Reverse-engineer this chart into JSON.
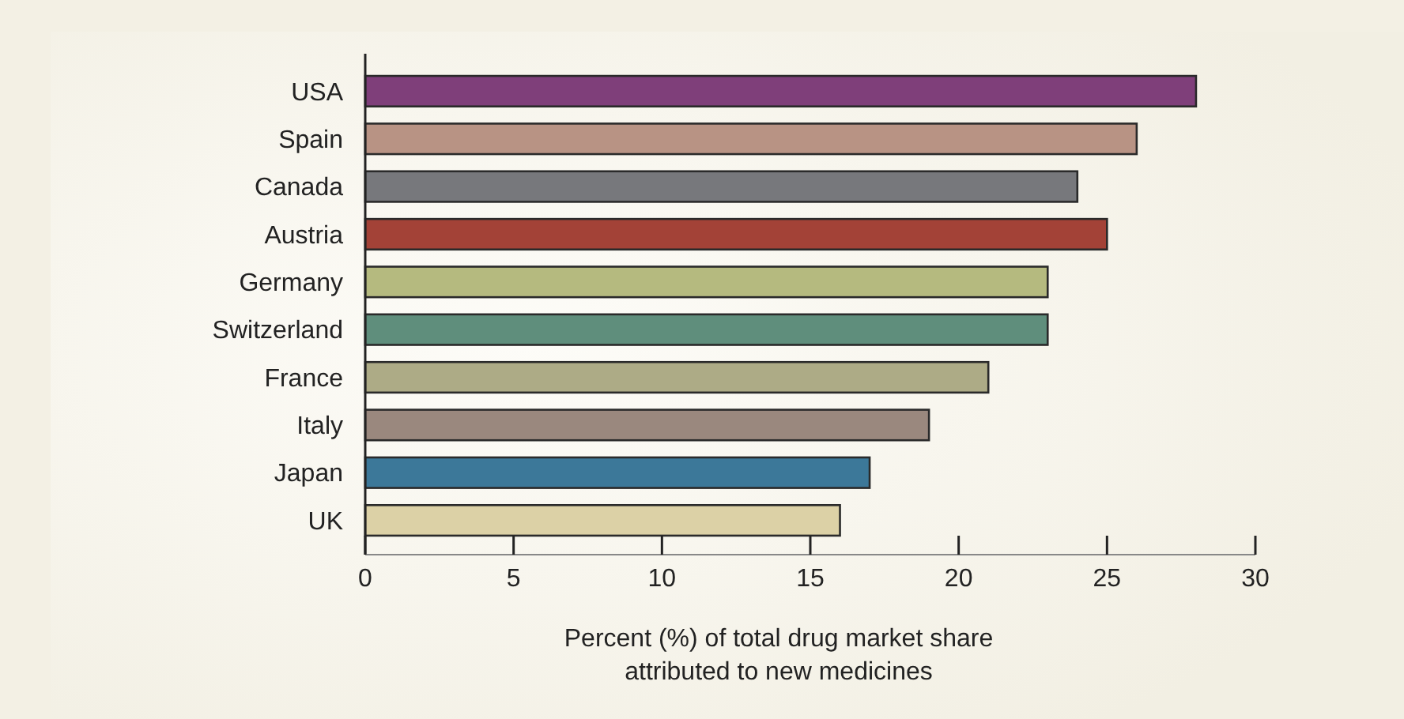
{
  "chart_data": {
    "type": "bar",
    "orientation": "horizontal",
    "xlabel": "Percent (%) of total drug market share\nattributed to new medicines",
    "categories": [
      "USA",
      "Spain",
      "Canada",
      "Austria",
      "Germany",
      "Switzerland",
      "France",
      "Italy",
      "Japan",
      "UK"
    ],
    "values": [
      28,
      26,
      24,
      25,
      23,
      23,
      21,
      19,
      17,
      16
    ],
    "colors": [
      "#7f3f7a",
      "#b89384",
      "#77787c",
      "#a34237",
      "#b5ba7f",
      "#5f8e7c",
      "#adab86",
      "#9a887e",
      "#3c7899",
      "#dcd1a6"
    ],
    "xlim": [
      0,
      30
    ],
    "xticks": [
      0,
      5,
      10,
      15,
      20,
      25,
      30
    ],
    "grid": false
  }
}
